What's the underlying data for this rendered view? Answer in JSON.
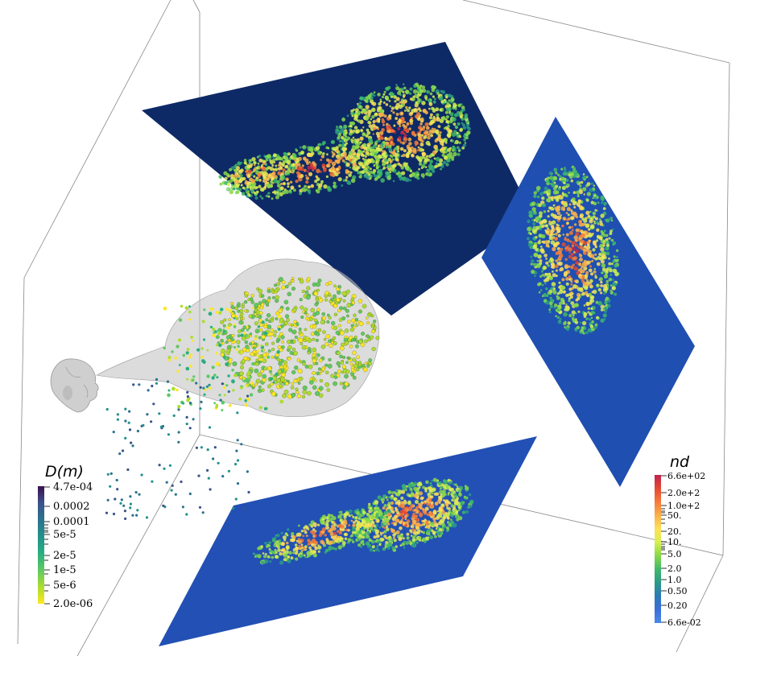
{
  "diameter_colorbar": {
    "title": "D(m)",
    "labels": [
      "4.7e-04",
      "0.0002",
      "0.0001",
      "5e-5",
      "2e-5",
      "1e-5",
      "5e-6",
      "2.0e-06"
    ],
    "colors": [
      "#3b0f4f",
      "#3b528b",
      "#2c728e",
      "#21918c",
      "#28ae80",
      "#5ec962",
      "#addc30",
      "#fde725"
    ]
  },
  "density_colorbar": {
    "title": "nd",
    "labels": [
      "6.6e+02",
      "2.0e+2",
      "1.0e+2",
      "50.",
      "20.",
      "10.",
      "5.0",
      "2.0",
      "1.0",
      "0.50",
      "0.20",
      "6.6e-02"
    ],
    "colors": [
      "#c0234f",
      "#e44a33",
      "#f57a3a",
      "#fbb04a",
      "#fde05a",
      "#d8ef52",
      "#88d84a",
      "#3fb86a",
      "#2a9a88",
      "#2b7ab8",
      "#3a6fd8",
      "#4a8ae8"
    ]
  },
  "planes": {
    "top_color": "#0e2a66",
    "side_color": "#1f4fb0",
    "bottom_color": "#2350b4"
  }
}
